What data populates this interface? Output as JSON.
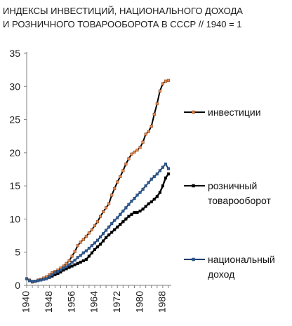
{
  "title_line1": "ИНДЕКСЫ ИНВЕСТИЦИЙ, НАЦИОНАЛЬНОГО ДОХОДА",
  "title_line2": "И РОЗНИЧНОГО ТОВАРООБОРОТА В СССР // 1940 = 1",
  "chart_data": {
    "type": "line",
    "title": "ИНДЕКСЫ ИНВЕСТИЦИЙ, НАЦИОНАЛЬНОГО ДОХОДА И РОЗНИЧНОГО ТОВАРООБОРОТА В СССР // 1940 = 1",
    "xlabel": "",
    "ylabel": "",
    "xlim": [
      1940,
      1991
    ],
    "ylim": [
      0,
      35
    ],
    "y_ticks": [
      0,
      5,
      10,
      15,
      20,
      25,
      30,
      35
    ],
    "x_ticks": [
      1940,
      1948,
      1956,
      1964,
      1972,
      1980,
      1988
    ],
    "grid": false,
    "legend_placement": "right",
    "series": [
      {
        "name": "инвестиции",
        "color": "#e8864a",
        "x": [
          1940,
          1941,
          1942,
          1943,
          1944,
          1945,
          1946,
          1947,
          1948,
          1949,
          1950,
          1951,
          1952,
          1953,
          1954,
          1955,
          1956,
          1957,
          1958,
          1959,
          1960,
          1961,
          1962,
          1963,
          1964,
          1965,
          1966,
          1967,
          1968,
          1969,
          1970,
          1971,
          1972,
          1973,
          1974,
          1975,
          1976,
          1977,
          1978,
          1979,
          1980,
          1981,
          1982,
          1983,
          1984,
          1985,
          1986,
          1987,
          1988,
          1989,
          1990
        ],
        "values": [
          1.0,
          0.8,
          0.5,
          0.6,
          0.8,
          0.9,
          1.1,
          1.3,
          1.6,
          1.9,
          2.1,
          2.3,
          2.6,
          2.9,
          3.3,
          3.7,
          4.4,
          5.1,
          6.0,
          6.5,
          6.9,
          7.4,
          7.9,
          8.4,
          9.0,
          9.6,
          10.4,
          11.1,
          11.7,
          12.3,
          13.6,
          14.6,
          15.6,
          16.4,
          17.3,
          18.3,
          19.1,
          19.8,
          20.1,
          20.4,
          20.8,
          21.6,
          22.8,
          23.2,
          24.0,
          25.8,
          27.4,
          29.3,
          30.4,
          30.8,
          30.9
        ]
      },
      {
        "name": "розничный товарооборот",
        "color": "#000000",
        "x": [
          1948,
          1949,
          1950,
          1951,
          1952,
          1953,
          1954,
          1955,
          1956,
          1957,
          1958,
          1959,
          1960,
          1961,
          1962,
          1963,
          1964,
          1965,
          1966,
          1967,
          1968,
          1969,
          1970,
          1971,
          1972,
          1973,
          1974,
          1975,
          1976,
          1977,
          1978,
          1979,
          1980,
          1981,
          1982,
          1983,
          1984,
          1985,
          1986,
          1987,
          1988,
          1989,
          1990
        ],
        "values": [
          1.2,
          1.4,
          1.6,
          1.8,
          2.0,
          2.3,
          2.5,
          2.7,
          2.9,
          3.1,
          3.3,
          3.5,
          3.7,
          3.9,
          4.4,
          4.9,
          5.4,
          5.8,
          6.2,
          6.7,
          7.2,
          7.6,
          8.0,
          8.4,
          8.8,
          9.2,
          9.6,
          10.0,
          10.4,
          10.7,
          11.0,
          11.0,
          11.2,
          11.5,
          11.9,
          12.3,
          12.6,
          13.0,
          13.4,
          14.0,
          15.0,
          16.2,
          16.8
        ]
      },
      {
        "name": "национальный доход",
        "color": "#2e5d96",
        "x": [
          1940,
          1941,
          1942,
          1943,
          1944,
          1945,
          1946,
          1947,
          1948,
          1949,
          1950,
          1951,
          1952,
          1953,
          1954,
          1955,
          1956,
          1957,
          1958,
          1959,
          1960,
          1961,
          1962,
          1963,
          1964,
          1965,
          1966,
          1967,
          1968,
          1969,
          1970,
          1971,
          1972,
          1973,
          1974,
          1975,
          1976,
          1977,
          1978,
          1979,
          1980,
          1981,
          1982,
          1983,
          1984,
          1985,
          1986,
          1987,
          1988,
          1989,
          1990
        ],
        "values": [
          1.0,
          0.7,
          0.6,
          0.6,
          0.7,
          0.8,
          0.9,
          1.0,
          1.3,
          1.6,
          1.9,
          2.1,
          2.3,
          2.6,
          2.8,
          3.1,
          3.5,
          3.8,
          4.2,
          4.5,
          4.9,
          5.2,
          5.6,
          6.0,
          6.4,
          6.8,
          7.3,
          7.8,
          8.3,
          8.8,
          9.3,
          9.8,
          10.2,
          10.7,
          11.2,
          11.7,
          12.2,
          12.7,
          13.1,
          13.6,
          14.0,
          14.5,
          15.0,
          15.5,
          16.0,
          16.4,
          16.8,
          17.3,
          17.8,
          18.3,
          17.6
        ]
      }
    ],
    "legend": [
      {
        "key": "investments",
        "lines": [
          "инвестиции"
        ]
      },
      {
        "key": "retail",
        "lines": [
          "розничный",
          "товарооборот"
        ]
      },
      {
        "key": "income",
        "lines": [
          "национальный",
          "доход"
        ]
      }
    ]
  }
}
